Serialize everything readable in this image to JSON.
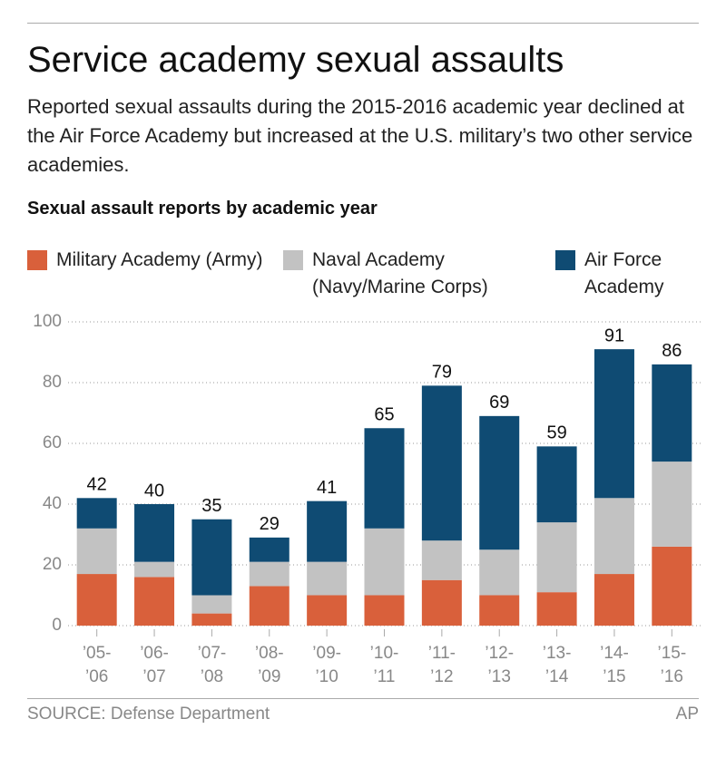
{
  "chart_data": {
    "type": "stacked_bar",
    "title": "Service academy sexual assaults",
    "subtitle": "Reported sexual assaults during the 2015-2016 academic year declined at the Air Force Academy but increased at the U.S. military’s two other service academies.",
    "chart_title": "Sexual assault reports by academic year",
    "categories": [
      [
        "’05-",
        "’06"
      ],
      [
        "’06-",
        "’07"
      ],
      [
        "’07-",
        "’08"
      ],
      [
        "’08-",
        "’09"
      ],
      [
        "’09-",
        "’10"
      ],
      [
        "’10-",
        "’11"
      ],
      [
        "’11-",
        "’12"
      ],
      [
        "’12-",
        "’13"
      ],
      [
        "’13-",
        "’14"
      ],
      [
        "’14-",
        "’15"
      ],
      [
        "’15-",
        "’16"
      ]
    ],
    "series": [
      {
        "name": "Military Academy (Army)",
        "color": "#d9603b",
        "values": [
          17,
          16,
          4,
          13,
          10,
          10,
          15,
          10,
          11,
          17,
          26
        ]
      },
      {
        "name": "Naval Academy (Navy/Marine Corps)",
        "color": "#c2c2c2",
        "values": [
          15,
          5,
          6,
          8,
          11,
          22,
          13,
          15,
          23,
          25,
          28
        ]
      },
      {
        "name": "Air Force Academy",
        "color": "#0f4b73",
        "values": [
          10,
          19,
          25,
          8,
          20,
          33,
          51,
          44,
          25,
          49,
          32
        ]
      }
    ],
    "totals": [
      42,
      40,
      35,
      29,
      41,
      65,
      79,
      69,
      59,
      91,
      86
    ],
    "ylim": [
      0,
      100
    ],
    "yticks": [
      0,
      20,
      40,
      60,
      80,
      100
    ],
    "grid": true,
    "source": "SOURCE: Defense Department",
    "credit": "AP"
  }
}
